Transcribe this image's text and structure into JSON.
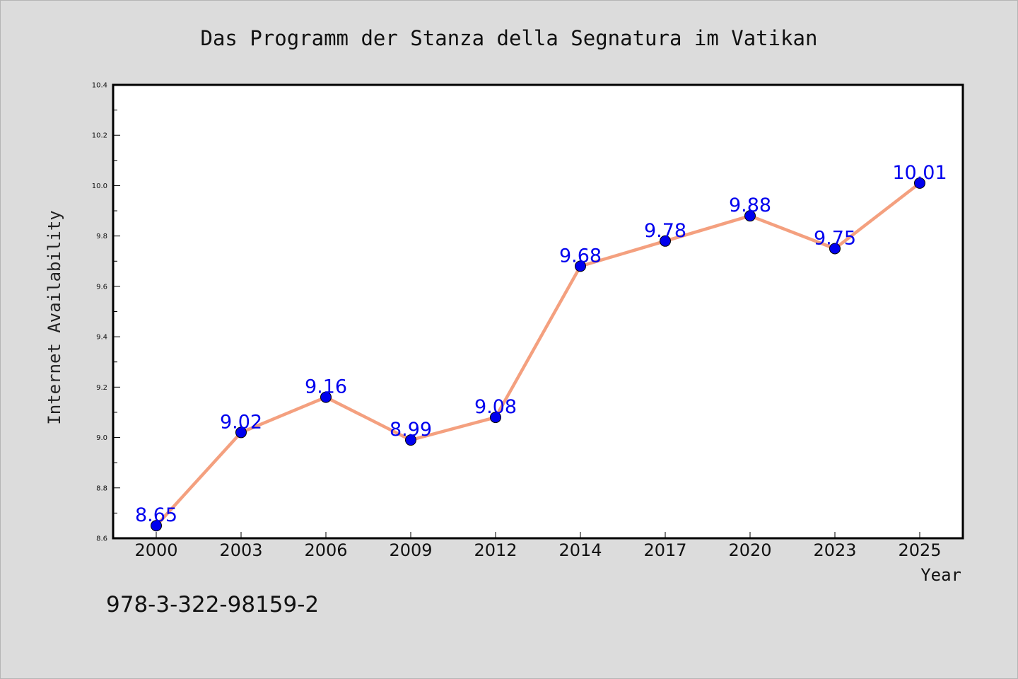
{
  "chart_data": {
    "type": "line",
    "title": "Das Programm der Stanza della Segnatura im Vatikan",
    "xlabel": "Year",
    "ylabel": "Internet Availability",
    "categories": [
      "2000",
      "2003",
      "2006",
      "2009",
      "2012",
      "2014",
      "2017",
      "2020",
      "2023",
      "2025"
    ],
    "series": [
      {
        "values": [
          8.65,
          9.02,
          9.16,
          8.99,
          9.08,
          9.68,
          9.78,
          9.88,
          9.75,
          10.01
        ],
        "line_color": "#f4a07f",
        "marker_color": "#0000ee"
      }
    ],
    "data_labels": [
      "8.65",
      "9.02",
      "9.16",
      "8.99",
      "9.08",
      "9.68",
      "9.78",
      "9.88",
      "9.75",
      "10.01"
    ],
    "ylim": [
      8.6,
      10.4
    ],
    "yticks": [
      "8.6",
      "8.8",
      "9.0",
      "9.2",
      "9.4",
      "9.6",
      "9.8",
      "10.0",
      "10.2",
      "10.4"
    ],
    "grid": false,
    "legend": "none"
  },
  "footer": {
    "isbn": "978-3-322-98159-2"
  }
}
